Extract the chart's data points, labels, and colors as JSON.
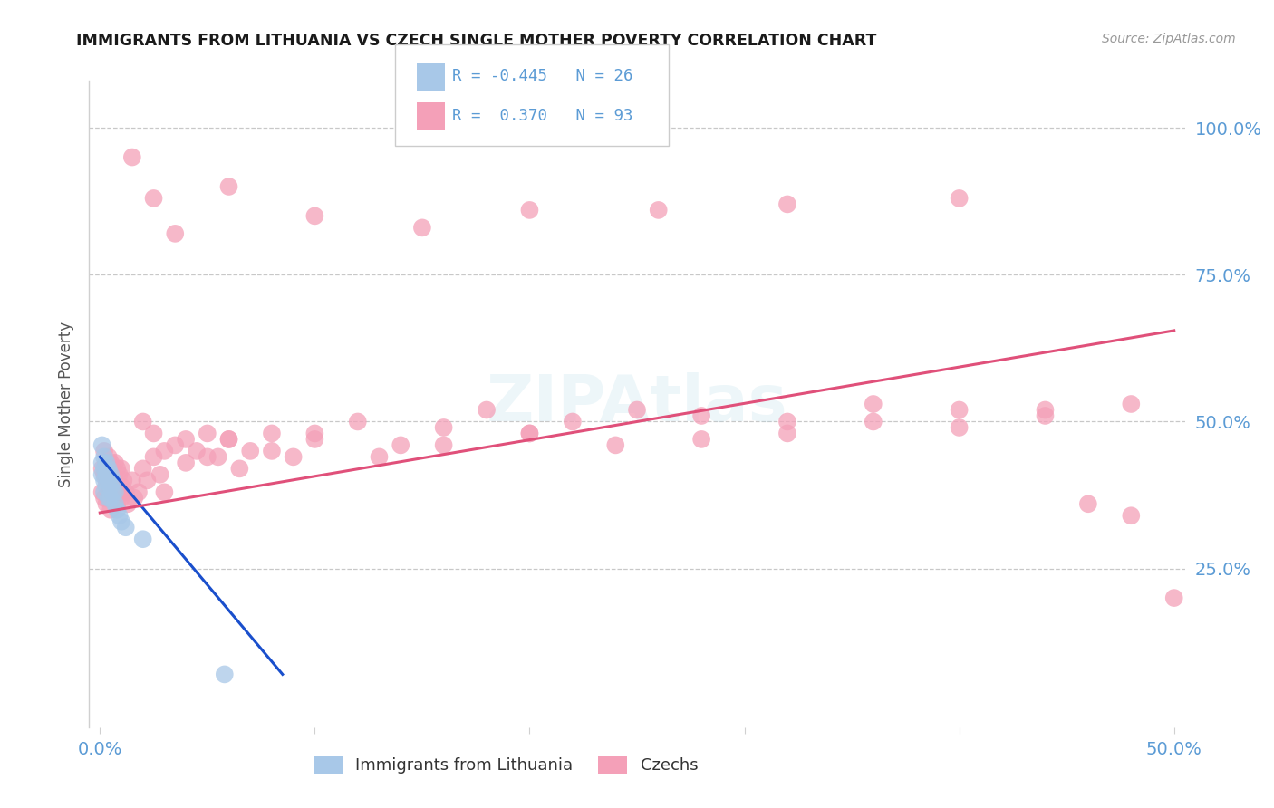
{
  "title": "IMMIGRANTS FROM LITHUANIA VS CZECH SINGLE MOTHER POVERTY CORRELATION CHART",
  "source": "Source: ZipAtlas.com",
  "tick_color": "#5b9bd5",
  "ylabel": "Single Mother Poverty",
  "xlim": [
    -0.005,
    0.505
  ],
  "ylim": [
    -0.02,
    1.08
  ],
  "x_ticks": [
    0.0,
    0.5
  ],
  "x_tick_labels": [
    "0.0%",
    "50.0%"
  ],
  "y_ticks": [
    0.25,
    0.5,
    0.75,
    1.0
  ],
  "y_tick_labels": [
    "25.0%",
    "50.0%",
    "75.0%",
    "100.0%"
  ],
  "blue_color": "#a8c8e8",
  "pink_color": "#f4a0b8",
  "blue_line_color": "#1a4fcc",
  "pink_line_color": "#e0507a",
  "watermark": "ZIPAtlas",
  "blue_scatter_x": [
    0.001,
    0.001,
    0.001,
    0.002,
    0.002,
    0.002,
    0.002,
    0.003,
    0.003,
    0.003,
    0.004,
    0.004,
    0.004,
    0.005,
    0.005,
    0.005,
    0.006,
    0.006,
    0.007,
    0.007,
    0.008,
    0.009,
    0.01,
    0.012,
    0.02,
    0.058
  ],
  "blue_scatter_y": [
    0.46,
    0.43,
    0.41,
    0.44,
    0.42,
    0.4,
    0.38,
    0.43,
    0.41,
    0.39,
    0.42,
    0.4,
    0.37,
    0.41,
    0.39,
    0.37,
    0.4,
    0.38,
    0.38,
    0.36,
    0.35,
    0.34,
    0.33,
    0.32,
    0.3,
    0.07
  ],
  "blue_line_x0": 0.0,
  "blue_line_y0": 0.44,
  "blue_line_x1": 0.085,
  "blue_line_y1": 0.07,
  "pink_line_x0": 0.0,
  "pink_line_y0": 0.345,
  "pink_line_x1": 0.5,
  "pink_line_y1": 0.655,
  "pink_scatter_x": [
    0.001,
    0.001,
    0.002,
    0.002,
    0.002,
    0.003,
    0.003,
    0.003,
    0.004,
    0.004,
    0.004,
    0.005,
    0.005,
    0.005,
    0.005,
    0.006,
    0.006,
    0.007,
    0.007,
    0.007,
    0.008,
    0.008,
    0.008,
    0.009,
    0.009,
    0.01,
    0.01,
    0.01,
    0.011,
    0.012,
    0.013,
    0.015,
    0.016,
    0.018,
    0.02,
    0.022,
    0.025,
    0.028,
    0.03,
    0.035,
    0.04,
    0.045,
    0.05,
    0.055,
    0.06,
    0.065,
    0.07,
    0.08,
    0.09,
    0.1,
    0.12,
    0.14,
    0.16,
    0.18,
    0.2,
    0.22,
    0.25,
    0.28,
    0.32,
    0.36,
    0.4,
    0.44,
    0.48,
    0.02,
    0.025,
    0.03,
    0.04,
    0.05,
    0.06,
    0.08,
    0.1,
    0.13,
    0.16,
    0.2,
    0.24,
    0.28,
    0.32,
    0.36,
    0.4,
    0.44,
    0.48,
    0.015,
    0.025,
    0.035,
    0.06,
    0.1,
    0.15,
    0.2,
    0.26,
    0.32,
    0.4,
    0.46,
    0.5
  ],
  "pink_scatter_y": [
    0.42,
    0.38,
    0.45,
    0.41,
    0.37,
    0.43,
    0.4,
    0.36,
    0.44,
    0.41,
    0.37,
    0.43,
    0.4,
    0.38,
    0.35,
    0.42,
    0.39,
    0.43,
    0.4,
    0.37,
    0.42,
    0.39,
    0.36,
    0.41,
    0.38,
    0.42,
    0.39,
    0.37,
    0.4,
    0.38,
    0.36,
    0.4,
    0.37,
    0.38,
    0.42,
    0.4,
    0.44,
    0.41,
    0.38,
    0.46,
    0.43,
    0.45,
    0.48,
    0.44,
    0.47,
    0.42,
    0.45,
    0.48,
    0.44,
    0.47,
    0.5,
    0.46,
    0.49,
    0.52,
    0.48,
    0.5,
    0.52,
    0.51,
    0.5,
    0.53,
    0.52,
    0.51,
    0.53,
    0.5,
    0.48,
    0.45,
    0.47,
    0.44,
    0.47,
    0.45,
    0.48,
    0.44,
    0.46,
    0.48,
    0.46,
    0.47,
    0.48,
    0.5,
    0.49,
    0.52,
    0.34,
    0.95,
    0.88,
    0.82,
    0.9,
    0.85,
    0.83,
    0.86,
    0.86,
    0.87,
    0.88,
    0.36,
    0.2
  ]
}
